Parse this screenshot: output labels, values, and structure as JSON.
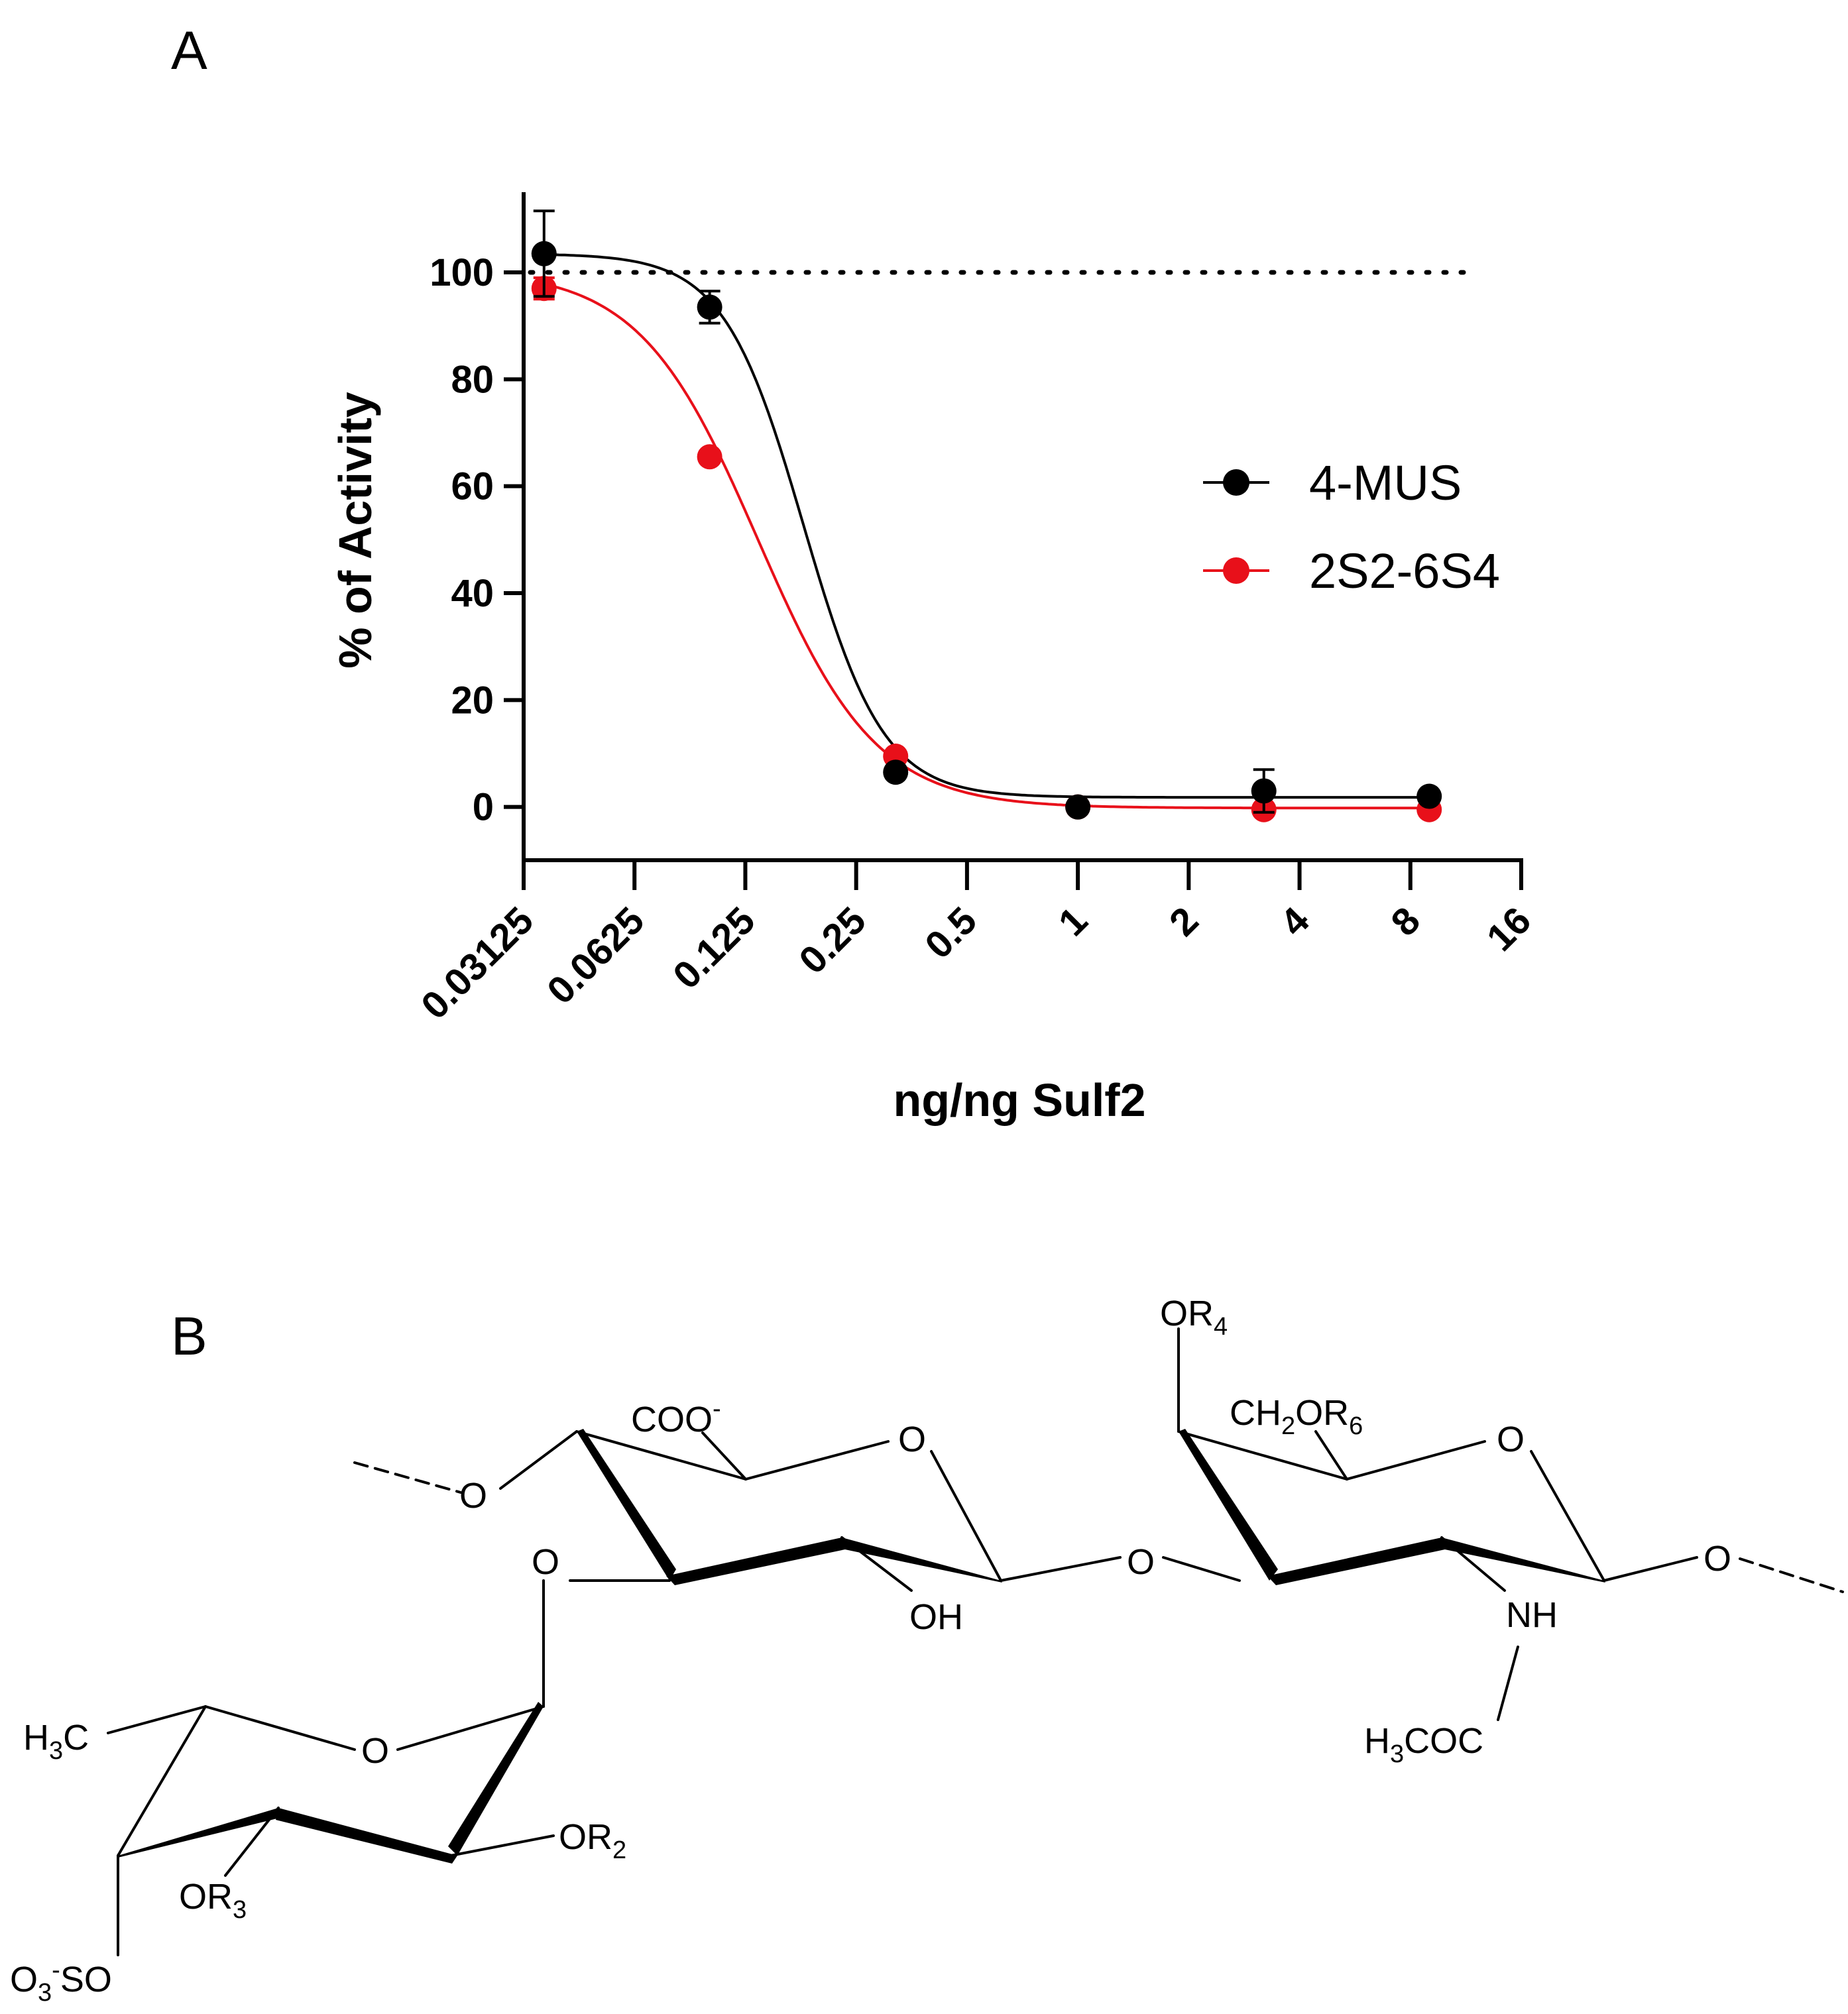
{
  "panels": {
    "a_label": "A",
    "b_label": "B"
  },
  "chart_data": {
    "type": "line",
    "xlabel": "ng/ng Sulf2",
    "ylabel": "% of Activity",
    "x_scale": "log2",
    "xlim": [
      0.03125,
      16
    ],
    "ylim": [
      -5,
      115
    ],
    "x_ticks": [
      "0.03125",
      "0.0625",
      "0.125",
      "0.25",
      "0.5",
      "1",
      "2",
      "4",
      "8",
      "16"
    ],
    "y_ticks": [
      "0",
      "20",
      "40",
      "60",
      "80",
      "100"
    ],
    "reference_line": {
      "y": 100,
      "style": "dotted"
    },
    "legend_position": "right",
    "series": [
      {
        "name": "4-MUS",
        "color": "#000000",
        "x": [
          0.0355,
          0.1,
          0.32,
          1,
          3.2,
          9
        ],
        "y": [
          103.5,
          93.5,
          6.5,
          0,
          3,
          2
        ],
        "err": [
          8,
          3,
          0,
          0,
          4,
          0
        ],
        "fit": {
          "top": 103.5,
          "bottom": 1.8,
          "ic50": 0.18,
          "hill": 4.0
        }
      },
      {
        "name": "2S2-6S4",
        "color": "#e8101a",
        "x": [
          0.0355,
          0.1,
          0.32,
          1,
          3.2,
          9
        ],
        "y": [
          97,
          65.5,
          9.5,
          0,
          -0.5,
          -0.5
        ],
        "err": [
          2,
          0,
          0,
          0,
          0,
          0
        ],
        "fit": {
          "top": 100.5,
          "bottom": -0.2,
          "ic50": 0.135,
          "hill": 2.7
        }
      }
    ]
  },
  "structure": {
    "labels": {
      "coo": "COO",
      "coo_charge": "-",
      "o_ring1": "O",
      "o_ring2": "O",
      "o_ring3": "O",
      "o_left": "O",
      "o_link1": "O",
      "o_link2": "O",
      "o_right": "O",
      "oh": "OH",
      "or4": "OR",
      "or4_sub": "4",
      "ch2or6_a": "CH",
      "ch2or6_sub2": "2",
      "ch2or6_b": "OR",
      "ch2or6_sub6": "6",
      "nh": "NH",
      "h3coc_a": "H",
      "h3coc_sub": "3",
      "h3coc_b": "COC",
      "h3c_a": "H",
      "h3c_sub": "3",
      "h3c_b": "C",
      "or2": "OR",
      "or2_sub": "2",
      "or3": "OR",
      "or3_sub": "3",
      "o3so_a": "O",
      "o3so_sub": "3",
      "o3so_charge": "-",
      "o3so_b": "SO"
    }
  }
}
